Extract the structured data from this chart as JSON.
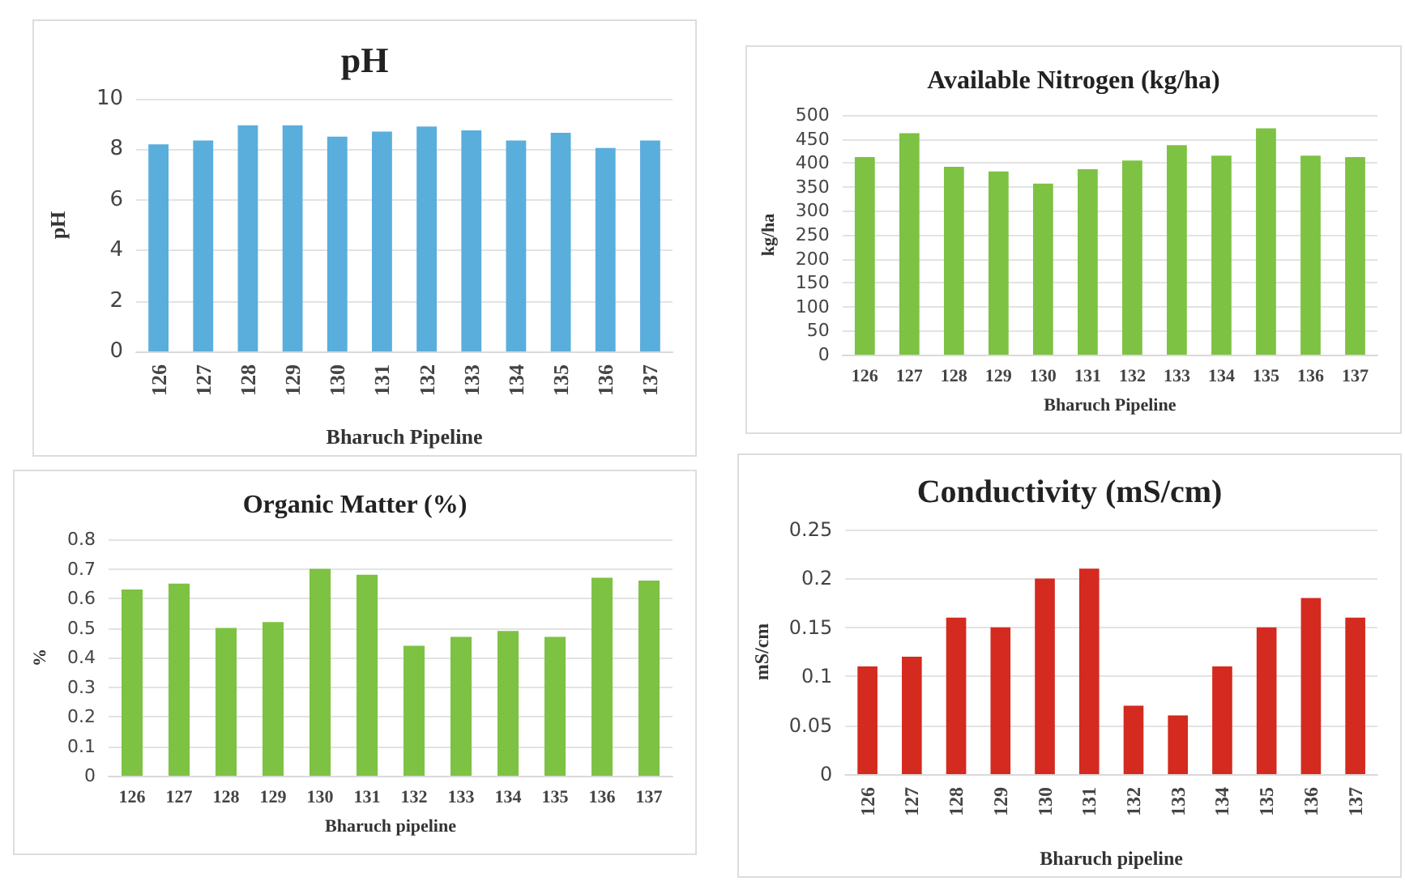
{
  "chart_data": [
    {
      "type": "bar",
      "title": "pH",
      "xlabel": "Bharuch Pipeline",
      "ylabel": "pH",
      "categories": [
        "126",
        "127",
        "128",
        "129",
        "130",
        "131",
        "132",
        "133",
        "134",
        "135",
        "136",
        "137"
      ],
      "values": [
        8.2,
        8.35,
        8.95,
        8.95,
        8.5,
        8.7,
        8.9,
        8.75,
        8.35,
        8.65,
        8.05,
        8.35
      ],
      "color": "#5aaedc",
      "ylim": [
        0,
        10
      ],
      "yticks": [
        0,
        2,
        4,
        6,
        8,
        10
      ],
      "grid": "y"
    },
    {
      "type": "bar",
      "title": "Available Nitrogen (kg/ha)",
      "xlabel": "Bharuch Pipeline",
      "ylabel": "kg/ha",
      "categories": [
        "126",
        "127",
        "128",
        "129",
        "130",
        "131",
        "132",
        "133",
        "134",
        "135",
        "136",
        "137"
      ],
      "values": [
        412,
        462,
        392,
        382,
        357,
        387,
        405,
        437,
        415,
        472,
        415,
        412
      ],
      "color": "#7dc242",
      "ylim": [
        0,
        500
      ],
      "yticks": [
        0,
        50,
        100,
        150,
        200,
        250,
        300,
        350,
        400,
        450,
        500
      ],
      "grid": "y"
    },
    {
      "type": "bar",
      "title": "Organic Matter (%)",
      "xlabel": "Bharuch pipeline",
      "ylabel": "%",
      "categories": [
        "126",
        "127",
        "128",
        "129",
        "130",
        "131",
        "132",
        "133",
        "134",
        "135",
        "136",
        "137"
      ],
      "values": [
        0.63,
        0.65,
        0.5,
        0.52,
        0.7,
        0.68,
        0.44,
        0.47,
        0.49,
        0.47,
        0.67,
        0.66
      ],
      "color": "#7dc242",
      "ylim": [
        0,
        0.8
      ],
      "yticks": [
        0,
        0.1,
        0.2,
        0.3,
        0.4,
        0.5,
        0.6,
        0.7,
        0.8
      ],
      "grid": "y"
    },
    {
      "type": "bar",
      "title": "Conductivity (mS/cm)",
      "xlabel": "Bharuch pipeline",
      "ylabel": "mS/cm",
      "categories": [
        "126",
        "127",
        "128",
        "129",
        "130",
        "131",
        "132",
        "133",
        "134",
        "135",
        "136",
        "137"
      ],
      "values": [
        0.11,
        0.12,
        0.16,
        0.15,
        0.2,
        0.21,
        0.07,
        0.06,
        0.11,
        0.15,
        0.18,
        0.16
      ],
      "color": "#d42a1f",
      "ylim": [
        0,
        0.25
      ],
      "yticks": [
        0,
        0.05,
        0.1,
        0.15,
        0.2,
        0.25
      ],
      "grid": "y"
    }
  ]
}
